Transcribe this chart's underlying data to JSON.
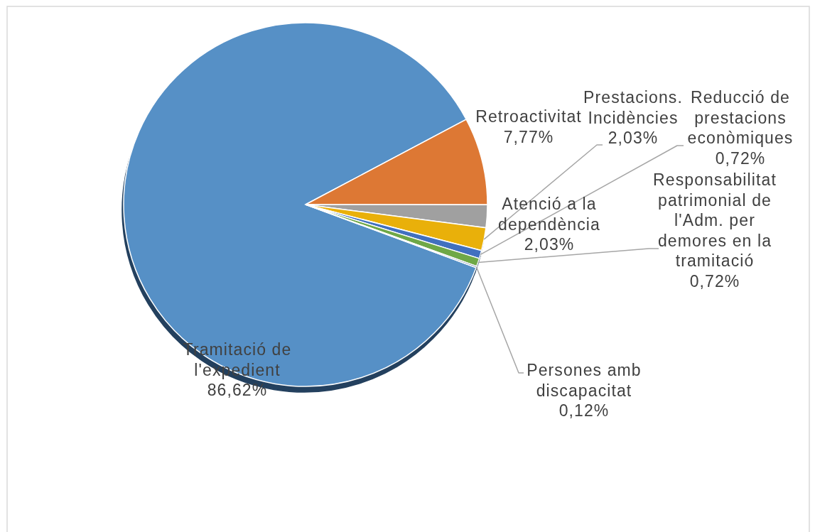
{
  "chart_data": {
    "type": "pie",
    "categories": [
      "Tramitació de l'expedient",
      "Retroactivitat",
      "Atenció a la dependència",
      "Prestacions. Incidències",
      "Reducció de prestacions econòmiques",
      "Responsabilitat patrimonial de l'Adm. per demores en la tramitació",
      "Persones amb discapacitat"
    ],
    "values": [
      86.62,
      7.77,
      2.03,
      2.03,
      0.72,
      0.72,
      0.12
    ],
    "colors": [
      "#5690c6",
      "#dd7834",
      "#a0a0a0",
      "#e9b00a",
      "#4170bf",
      "#6fa847",
      "#264478"
    ],
    "value_labels": [
      "86,62%",
      "7,77%",
      "2,03%",
      "2,03%",
      "0,72%",
      "0,72%",
      "0,12%"
    ]
  }
}
